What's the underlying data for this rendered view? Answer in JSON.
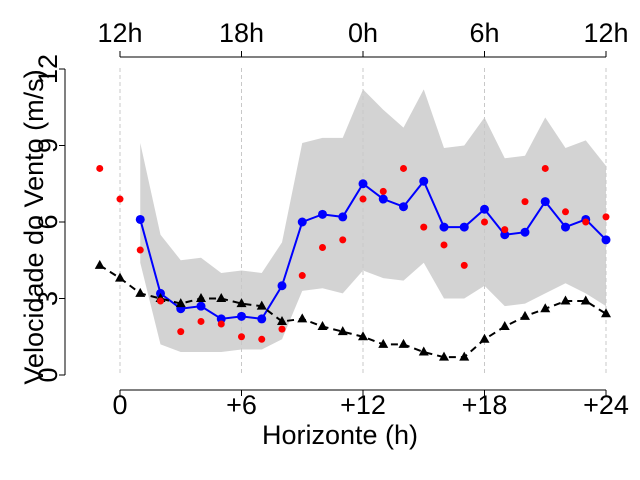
{
  "chart_data": {
    "type": "line",
    "title": "",
    "xlabel": "Horizonte (h)",
    "ylabel": "Velocidade do Vento (m/s)",
    "xlim": [
      -2,
      25
    ],
    "ylim": [
      0,
      12
    ],
    "grid": "vertical dashed",
    "x_ticks": [
      0,
      6,
      12,
      18,
      24
    ],
    "x_tick_labels": [
      "0",
      "+6",
      "+12",
      "+18",
      "+24"
    ],
    "y_ticks": [
      0,
      3,
      6,
      9,
      12
    ],
    "y_tick_labels": [
      "0",
      "3",
      "6",
      "9",
      "12"
    ],
    "top_axis": {
      "ticks": [
        0,
        6,
        12,
        18,
        24
      ],
      "labels": [
        "12h",
        "18h",
        "0h",
        "6h",
        "12h"
      ]
    },
    "band": {
      "x": [
        1,
        2,
        3,
        4,
        5,
        6,
        7,
        8,
        9,
        10,
        11,
        12,
        13,
        14,
        15,
        16,
        17,
        18,
        19,
        20,
        21,
        22,
        23,
        24
      ],
      "upper": [
        9.1,
        5.5,
        4.5,
        4.6,
        4.0,
        4.1,
        4.0,
        5.2,
        9.1,
        9.3,
        9.3,
        11.2,
        10.4,
        9.7,
        11.2,
        8.9,
        9.0,
        10.1,
        8.5,
        8.6,
        10.1,
        8.9,
        9.2,
        8.2
      ],
      "lower": [
        4.4,
        1.2,
        0.9,
        0.9,
        0.9,
        1.0,
        1.0,
        1.4,
        3.3,
        3.4,
        3.2,
        4.1,
        3.8,
        3.7,
        4.4,
        3.0,
        3.0,
        3.5,
        2.7,
        2.8,
        3.2,
        3.6,
        3.2,
        2.7
      ],
      "color": "#d3d3d3"
    },
    "series": [
      {
        "x": [
          1,
          2,
          3,
          4,
          5,
          6,
          7,
          8,
          9,
          10,
          11,
          12,
          13,
          14,
          15,
          16,
          17,
          18,
          19,
          20,
          21,
          22,
          23,
          24
        ],
        "values": [
          6.1,
          3.2,
          2.6,
          2.7,
          2.2,
          2.3,
          2.2,
          3.5,
          6.0,
          6.3,
          6.2,
          7.5,
          6.9,
          6.6,
          7.6,
          5.8,
          5.8,
          6.5,
          5.5,
          5.6,
          6.8,
          5.8,
          6.1,
          5.3
        ],
        "color": "#0000ff",
        "style": "solid",
        "marker": "circle"
      },
      {
        "x": [
          -1,
          0,
          1,
          2,
          3,
          4,
          5,
          6,
          7,
          8,
          9,
          10,
          11,
          12,
          13,
          14,
          15,
          16,
          17,
          18,
          19,
          20,
          21,
          22,
          23,
          24
        ],
        "values": [
          4.3,
          3.8,
          3.2,
          3.0,
          2.8,
          3.0,
          3.0,
          2.8,
          2.7,
          2.1,
          2.2,
          1.9,
          1.7,
          1.5,
          1.2,
          1.2,
          0.9,
          0.7,
          0.7,
          1.4,
          1.9,
          2.3,
          2.6,
          2.9,
          2.9,
          2.4
        ],
        "color": "#000000",
        "style": "dashed",
        "marker": "triangle"
      },
      {
        "x": [
          -1,
          0,
          1,
          2,
          3,
          4,
          5,
          6,
          7,
          8,
          9,
          10,
          11,
          12,
          13,
          14,
          15,
          16,
          17,
          18,
          19,
          20,
          21,
          22,
          23,
          24
        ],
        "values": [
          8.1,
          6.9,
          4.9,
          2.9,
          1.7,
          2.1,
          2.0,
          1.5,
          1.4,
          1.8,
          3.9,
          5.0,
          5.3,
          6.9,
          7.2,
          8.1,
          5.8,
          5.1,
          4.3,
          6.0,
          5.7,
          6.8,
          8.1,
          6.4,
          6.0,
          6.2
        ],
        "color": "#ff0000",
        "style": "none",
        "marker": "point"
      }
    ]
  }
}
